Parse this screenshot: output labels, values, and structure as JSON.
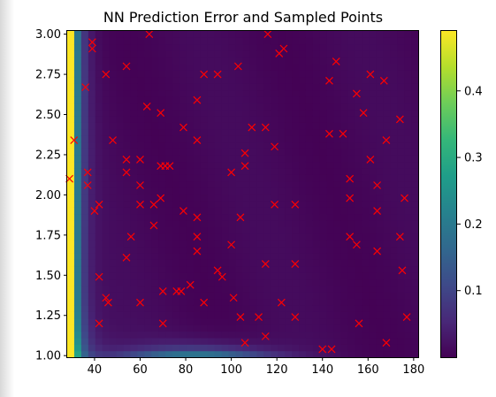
{
  "chart_data": {
    "type": "heatmap",
    "title": "NN Prediction Error and Sampled Points",
    "xlabel": "",
    "ylabel": "",
    "xlim": [
      28,
      182
    ],
    "ylim": [
      0.99,
      3.02
    ],
    "x_ticks": [
      "40",
      "60",
      "80",
      "100",
      "120",
      "140",
      "160",
      "180"
    ],
    "y_ticks": [
      "1.00",
      "1.25",
      "1.50",
      "1.75",
      "2.00",
      "2.25",
      "2.50",
      "2.75",
      "3.00"
    ],
    "colormap": "viridis",
    "colorbar": {
      "range": [
        0.0,
        0.49
      ],
      "ticks": [
        "0.1",
        "0.2",
        "0.3",
        "0.4"
      ]
    },
    "marker_color": "#ff0000",
    "sampled_points": {
      "marker": "x",
      "x": [
        29,
        31,
        36,
        37,
        37,
        39,
        39,
        40,
        42,
        42,
        42,
        45,
        45,
        46,
        48,
        54,
        54,
        54,
        54,
        56,
        60,
        60,
        60,
        60,
        63,
        64,
        66,
        66,
        69,
        69,
        69,
        70,
        70,
        71,
        73,
        76,
        78,
        79,
        79,
        82,
        85,
        85,
        85,
        85,
        85,
        88,
        88,
        94,
        94,
        96,
        100,
        100,
        101,
        103,
        104,
        104,
        106,
        106,
        106,
        109,
        112,
        115,
        115,
        115,
        116,
        119,
        119,
        121,
        122,
        123,
        128,
        128,
        128,
        140,
        143,
        143,
        144,
        146,
        149,
        152,
        152,
        152,
        155,
        155,
        156,
        158,
        161,
        161,
        164,
        164,
        164,
        167,
        168,
        168,
        174,
        174,
        175,
        176,
        177
      ],
      "y": [
        2.1,
        2.34,
        2.67,
        2.14,
        2.06,
        2.95,
        2.91,
        1.9,
        1.94,
        1.49,
        1.2,
        2.75,
        1.36,
        1.33,
        2.34,
        2.8,
        2.22,
        2.14,
        1.61,
        1.74,
        2.22,
        2.06,
        1.94,
        1.33,
        2.55,
        3.0,
        1.94,
        1.81,
        2.51,
        2.18,
        1.98,
        1.4,
        1.2,
        2.18,
        2.18,
        1.4,
        1.4,
        2.42,
        1.9,
        1.44,
        2.59,
        2.34,
        1.86,
        1.74,
        1.65,
        2.75,
        1.33,
        2.75,
        1.53,
        1.49,
        2.14,
        1.69,
        1.36,
        2.8,
        1.86,
        1.24,
        2.26,
        2.18,
        1.08,
        2.42,
        1.24,
        2.42,
        1.57,
        1.12,
        3.0,
        2.3,
        1.94,
        2.88,
        1.33,
        2.91,
        1.94,
        1.57,
        1.24,
        1.04,
        2.71,
        2.38,
        1.04,
        2.83,
        2.38,
        2.1,
        1.98,
        1.74,
        2.63,
        1.69,
        1.2,
        2.51,
        2.75,
        2.22,
        2.06,
        1.9,
        1.65,
        2.71,
        2.34,
        1.08,
        2.47,
        1.74,
        1.53,
        1.98,
        1.24
      ]
    }
  }
}
